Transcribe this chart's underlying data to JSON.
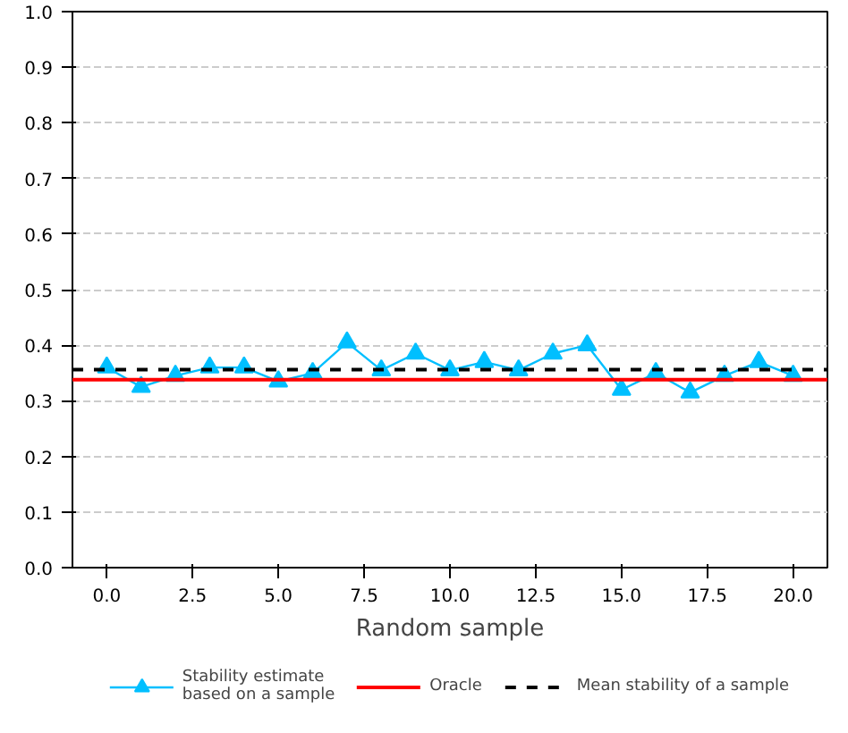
{
  "chart_data": {
    "type": "line",
    "xlabel": "Random sample",
    "x": [
      0,
      1,
      2,
      3,
      4,
      5,
      6,
      7,
      8,
      9,
      10,
      11,
      12,
      13,
      14,
      15,
      16,
      17,
      18,
      19,
      20
    ],
    "series": [
      {
        "name": "Stability estimate\nbased on a sample",
        "color": "#00bfff",
        "values": [
          0.36,
          0.325,
          0.345,
          0.36,
          0.36,
          0.335,
          0.35,
          0.405,
          0.355,
          0.385,
          0.355,
          0.37,
          0.355,
          0.385,
          0.4,
          0.32,
          0.35,
          0.315,
          0.345,
          0.37,
          0.345
        ]
      }
    ],
    "ref_lines": [
      {
        "axis": "y",
        "value": 0.338,
        "label": "Oracle",
        "color": "#ff0000",
        "line_style": "solid"
      },
      {
        "axis": "y",
        "value": 0.356,
        "label": "Mean stability of a sample",
        "color": "#000000",
        "line_style": "dashed"
      }
    ],
    "xlim": [
      -1,
      21
    ],
    "xticks": [
      {
        "value": 0,
        "label": "0.0"
      },
      {
        "value": 2.5,
        "label": "2.5"
      },
      {
        "value": 5,
        "label": "5.0"
      },
      {
        "value": 7.5,
        "label": "7.5"
      },
      {
        "value": 10,
        "label": "10.0"
      },
      {
        "value": 12.5,
        "label": "12.5"
      },
      {
        "value": 15,
        "label": "15.0"
      },
      {
        "value": 17.5,
        "label": "17.5"
      },
      {
        "value": 20,
        "label": "20.0"
      }
    ],
    "ylim": [
      0,
      1
    ],
    "yticks": [
      {
        "value": 0,
        "label": "0.0"
      },
      {
        "value": 0.1,
        "label": "0.1"
      },
      {
        "value": 0.2,
        "label": "0.2"
      },
      {
        "value": 0.3,
        "label": "0.3"
      },
      {
        "value": 0.4,
        "label": "0.4"
      },
      {
        "value": 0.5,
        "label": "0.5"
      },
      {
        "value": 0.6,
        "label": "0.6"
      },
      {
        "value": 0.7,
        "label": "0.7"
      },
      {
        "value": 0.8,
        "label": "0.8"
      },
      {
        "value": 0.9,
        "label": "0.9"
      },
      {
        "value": 1,
        "label": "1.0"
      }
    ],
    "grid": "y",
    "legend": "bottom",
    "marker": "triangle",
    "line_style": "solid"
  }
}
